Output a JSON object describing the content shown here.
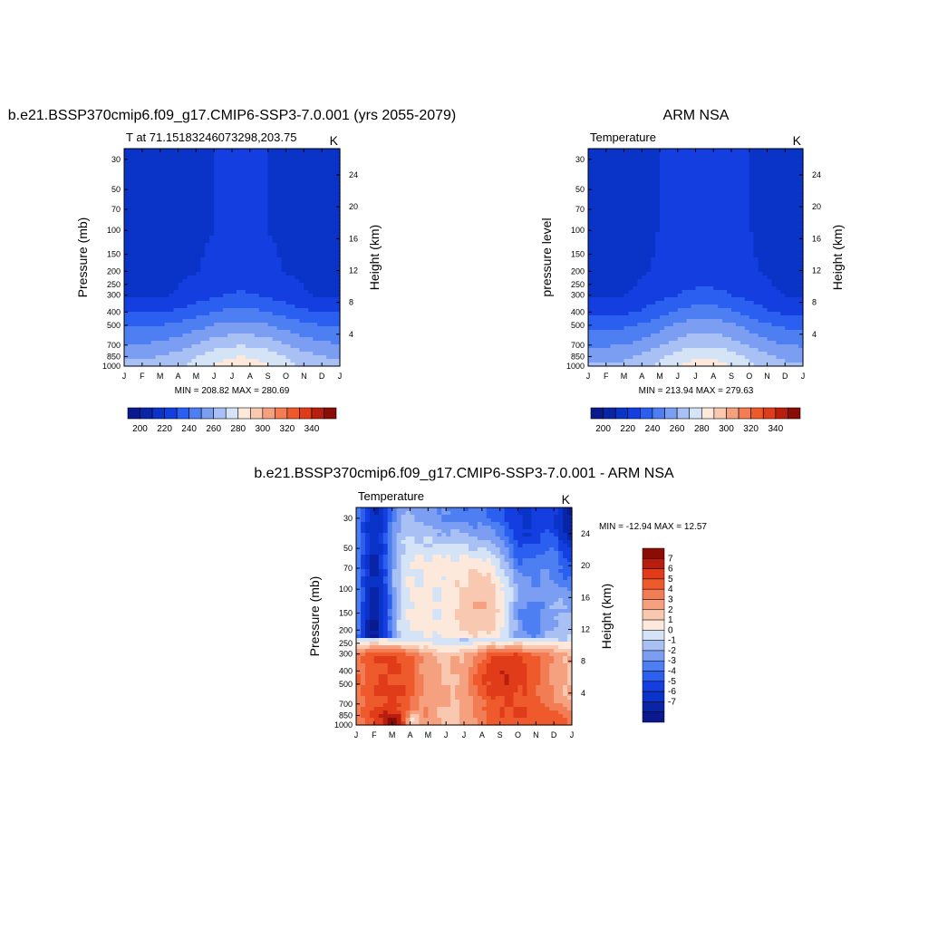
{
  "colormap": [
    "#0a1a8c",
    "#0a24a8",
    "#0a33c8",
    "#143ee0",
    "#2b5ff0",
    "#4d7ff2",
    "#7b9ef2",
    "#a8c0f4",
    "#d5e3f7",
    "#fde8dc",
    "#f8c8b0",
    "#f5a07e",
    "#f27c54",
    "#ef5a2c",
    "#e03c1a",
    "#b81e0e",
    "#8b0c04"
  ],
  "chart_data": [
    {
      "type": "contour",
      "title": "b.e21.BSSP370cmip6.f09_g17.CMIP6-SSP3-7.0.001 (yrs 2055-2079)",
      "left_string": "T at 71.15183246073298,203.75",
      "right_string": "K",
      "ylabel": "Pressure (mb)",
      "y2label": "Height (km)",
      "months": [
        "J",
        "F",
        "M",
        "A",
        "M",
        "J",
        "J",
        "A",
        "S",
        "O",
        "N",
        "D",
        "J"
      ],
      "pressure_ticks": [
        30,
        50,
        70,
        100,
        150,
        200,
        250,
        300,
        400,
        500,
        700,
        850,
        1000
      ],
      "height_ticks": [
        4,
        8,
        12,
        16,
        20,
        24
      ],
      "stats": "MIN = 208.82 MAX = 280.69",
      "colorbar_labels": [
        200,
        220,
        240,
        260,
        280,
        300,
        320,
        340
      ],
      "levels": [
        185,
        195,
        205,
        215,
        225,
        235,
        245,
        255,
        265,
        275,
        285,
        295,
        305,
        315,
        325,
        335,
        345
      ],
      "min": 208.82,
      "max": 280.69,
      "profile_jan": [
        [
          30,
          211
        ],
        [
          50,
          211
        ],
        [
          100,
          211
        ],
        [
          200,
          211
        ],
        [
          300,
          213
        ],
        [
          400,
          224
        ],
        [
          500,
          234
        ],
        [
          700,
          246
        ],
        [
          850,
          254
        ],
        [
          1000,
          258
        ]
      ],
      "profile_jul": [
        [
          30,
          216
        ],
        [
          50,
          216
        ],
        [
          100,
          216
        ],
        [
          200,
          218
        ],
        [
          250,
          223
        ],
        [
          300,
          226
        ],
        [
          400,
          238
        ],
        [
          500,
          248
        ],
        [
          700,
          264
        ],
        [
          850,
          275
        ],
        [
          1000,
          280
        ]
      ]
    },
    {
      "type": "contour",
      "title": "ARM NSA",
      "left_string": "Temperature",
      "right_string": "K",
      "ylabel": "pressure level",
      "y2label": "Height (km)",
      "months": [
        "J",
        "F",
        "M",
        "A",
        "M",
        "J",
        "J",
        "A",
        "S",
        "O",
        "N",
        "D",
        "J"
      ],
      "pressure_ticks": [
        30,
        50,
        70,
        100,
        150,
        200,
        250,
        300,
        400,
        500,
        700,
        850,
        1000
      ],
      "height_ticks": [
        4,
        8,
        12,
        16,
        20,
        24
      ],
      "stats": "MIN = 213.94 MAX = 279.63",
      "colorbar_labels": [
        200,
        220,
        240,
        260,
        280,
        300,
        320,
        340
      ],
      "levels": [
        185,
        195,
        205,
        215,
        225,
        235,
        245,
        255,
        265,
        275,
        285,
        295,
        305,
        315,
        325,
        335,
        345
      ],
      "min": 213.94,
      "max": 279.63,
      "profile_jan": [
        [
          30,
          212
        ],
        [
          50,
          212
        ],
        [
          100,
          212
        ],
        [
          200,
          212
        ],
        [
          300,
          214
        ],
        [
          400,
          222
        ],
        [
          500,
          232
        ],
        [
          700,
          244
        ],
        [
          850,
          252
        ],
        [
          1000,
          256
        ]
      ],
      "profile_jul": [
        [
          30,
          218
        ],
        [
          50,
          218
        ],
        [
          100,
          218
        ],
        [
          200,
          220
        ],
        [
          250,
          224
        ],
        [
          300,
          228
        ],
        [
          400,
          240
        ],
        [
          500,
          250
        ],
        [
          700,
          263
        ],
        [
          850,
          274
        ],
        [
          1000,
          279
        ]
      ]
    },
    {
      "type": "contour",
      "title": "b.e21.BSSP370cmip6.f09_g17.CMIP6-SSP3-7.0.001 - ARM NSA",
      "left_string": "Temperature",
      "right_string": "K",
      "ylabel": "Pressure (mb)",
      "y2label": "Height (km)",
      "months": [
        "J",
        "F",
        "M",
        "A",
        "M",
        "J",
        "J",
        "A",
        "S",
        "O",
        "N",
        "D",
        "J"
      ],
      "pressure_ticks": [
        30,
        50,
        70,
        100,
        150,
        200,
        250,
        300,
        400,
        500,
        700,
        850,
        1000
      ],
      "height_ticks": [
        4,
        8,
        12,
        16,
        20,
        24
      ],
      "stats": "MIN = -12.94 MAX =  12.57",
      "colorbar_labels": [
        7,
        6,
        5,
        4,
        3,
        2,
        1,
        0,
        -1,
        -2,
        -3,
        -4,
        -5,
        -6,
        -7
      ],
      "levels": [
        -8,
        -7,
        -6,
        -5,
        -4,
        -3,
        -2,
        -1,
        0,
        1,
        2,
        3,
        4,
        5,
        6,
        7,
        8
      ],
      "min": -12.94,
      "max": 12.57
    }
  ]
}
